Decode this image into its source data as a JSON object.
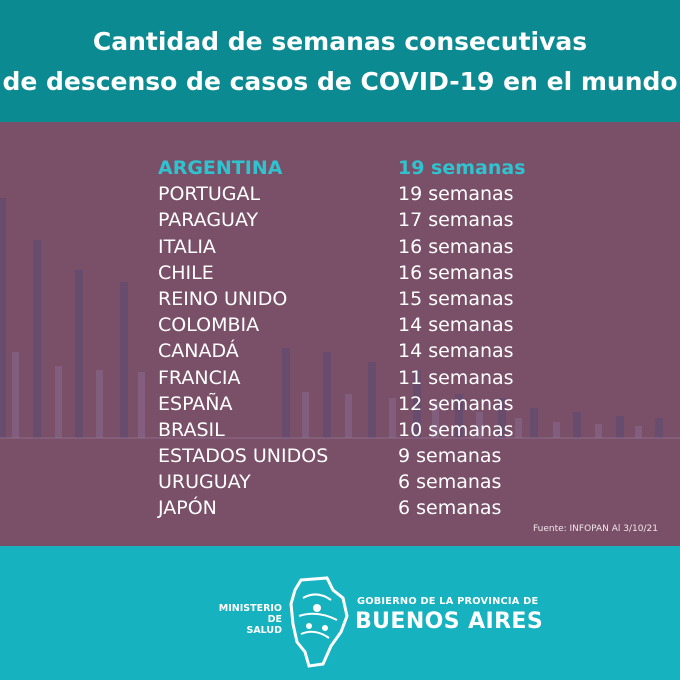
{
  "header": {
    "line1": "Cantidad de semanas consecutivas",
    "line2": "de descenso de casos de COVID-19 en el mundo"
  },
  "rows": [
    {
      "country": "ARGENTINA",
      "weeks": "19 semanas",
      "highlight": true
    },
    {
      "country": "PORTUGAL",
      "weeks": "19 semanas"
    },
    {
      "country": "PARAGUAY",
      "weeks": "17 semanas"
    },
    {
      "country": "ITALIA",
      "weeks": "16 semanas"
    },
    {
      "country": "CHILE",
      "weeks": "16 semanas"
    },
    {
      "country": "REINO UNIDO",
      "weeks": "15 semanas"
    },
    {
      "country": "COLOMBIA",
      "weeks": "14 semanas"
    },
    {
      "country": "CANADÁ",
      "weeks": "14 semanas"
    },
    {
      "country": "FRANCIA",
      "weeks": "11 semanas"
    },
    {
      "country": "ESPAÑA",
      "weeks": "12 semanas"
    },
    {
      "country": "BRASIL",
      "weeks": "10 semanas"
    },
    {
      "country": "ESTADOS UNIDOS",
      "weeks": "9 semanas"
    },
    {
      "country": "URUGUAY",
      "weeks": "6 semanas"
    },
    {
      "country": "JAPÓN",
      "weeks": "6 semanas"
    }
  ],
  "source": "Fuente: INFOPAN Al 3/10/21",
  "footer": {
    "ministry_line1": "MINISTERIO DE",
    "ministry_line2": "SALUD",
    "gov_line1": "GOBIERNO DE LA PROVINCIA DE",
    "gov_line2": "BUENOS AIRES"
  },
  "colors": {
    "header_bg": "#0b8a91",
    "panel_bg": "#7a5069",
    "highlight": "#2ec3cf",
    "footer_bg": "#17b2c0"
  }
}
